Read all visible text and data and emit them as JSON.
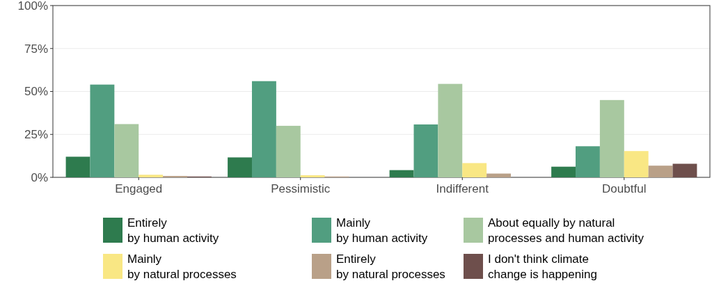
{
  "chart_data": {
    "type": "bar",
    "categories": [
      "Engaged",
      "Pessimistic",
      "Indifferent",
      "Doubtful"
    ],
    "series": [
      {
        "name": "Entirely\nby human activity",
        "color": "#2e7b4e",
        "values": [
          12,
          11.6,
          4.2,
          6.2
        ]
      },
      {
        "name": "Mainly\nby human activity",
        "color": "#519e80",
        "values": [
          54,
          56,
          30.8,
          18.1
        ]
      },
      {
        "name": "About equally by natural\nprocesses and human activity",
        "color": "#a8c8a0",
        "values": [
          31,
          30,
          54.4,
          45
        ]
      },
      {
        "name": "Mainly\nby natural processes",
        "color": "#f9e784",
        "values": [
          1.5,
          1.2,
          8.3,
          15.3
        ]
      },
      {
        "name": "Entirely\nby natural processes",
        "color": "#b9a088",
        "values": [
          0.8,
          0.5,
          2.2,
          6.8
        ]
      },
      {
        "name": "I don't think climate\nchange is happening",
        "color": "#6e4f4c",
        "values": [
          0.5,
          null,
          0,
          7.9
        ]
      }
    ],
    "ylim": [
      0,
      100
    ],
    "yticks": [
      {
        "value": 0,
        "label": "0%"
      },
      {
        "value": 25,
        "label": "25%"
      },
      {
        "value": 50,
        "label": "50%"
      },
      {
        "value": 75,
        "label": "75%"
      },
      {
        "value": 100,
        "label": "100%"
      }
    ],
    "grid": "y",
    "legend": "bottom"
  }
}
